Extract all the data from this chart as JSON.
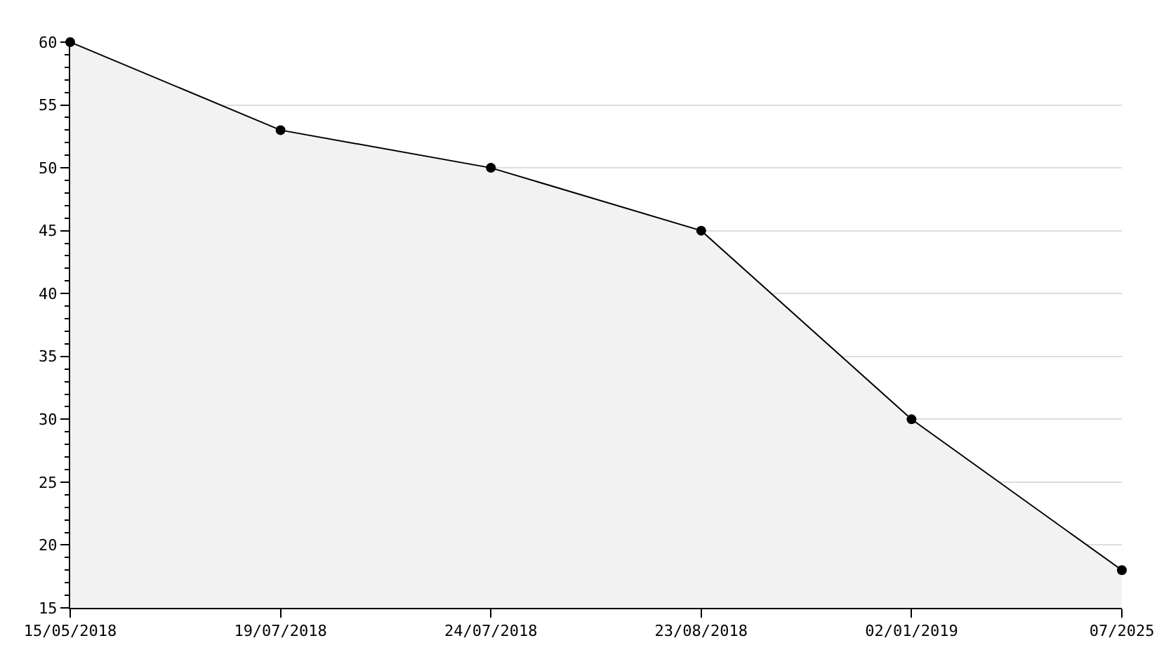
{
  "chart_data": {
    "type": "area",
    "categories": [
      "15/05/2018",
      "19/07/2018",
      "24/07/2018",
      "23/08/2018",
      "02/01/2019",
      "07/2025"
    ],
    "series": [
      {
        "color": "#000000",
        "values": [
          60,
          53,
          50,
          45,
          30,
          18
        ]
      }
    ],
    "ylim": [
      15,
      60
    ],
    "yticks": [
      15,
      20,
      25,
      30,
      35,
      40,
      45,
      50,
      55,
      60
    ],
    "grid": "y",
    "marker": "circle",
    "line_style": "solid",
    "legend": false
  }
}
